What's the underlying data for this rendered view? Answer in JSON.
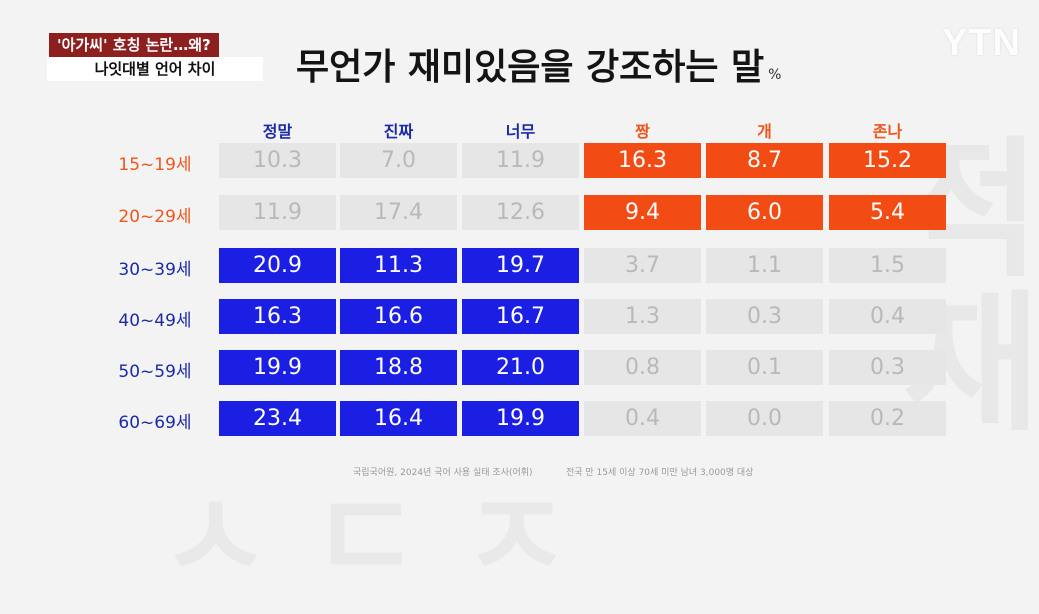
{
  "news": {
    "logo": "YTN",
    "badge_top": "'아가씨' 호칭 논란…왜?",
    "badge_sub": "나잇대별 언어 차이"
  },
  "colors": {
    "blue": "#1b1ee3",
    "orange": "#f24b14",
    "muted": "#e6e6e6",
    "header_blue": "#1b2aa8",
    "header_orange": "#f0561c"
  },
  "chart_data": {
    "type": "table",
    "title": "무언가 재미있음을 강조하는 말",
    "unit": "%",
    "columns": [
      "정말",
      "진짜",
      "너무",
      "짱",
      "개",
      "존나"
    ],
    "column_groups": [
      "blue",
      "blue",
      "blue",
      "orange",
      "orange",
      "orange"
    ],
    "rows": [
      {
        "label": "15~19세",
        "values": [
          "10.3",
          "7.0",
          "11.9",
          "16.3",
          "8.7",
          "15.2"
        ],
        "highlight": "orange"
      },
      {
        "label": "20~29세",
        "values": [
          "11.9",
          "17.4",
          "12.6",
          "9.4",
          "6.0",
          "5.4"
        ],
        "highlight": "orange"
      },
      {
        "label": "30~39세",
        "values": [
          "20.9",
          "11.3",
          "19.7",
          "3.7",
          "1.1",
          "1.5"
        ],
        "highlight": "blue"
      },
      {
        "label": "40~49세",
        "values": [
          "16.3",
          "16.6",
          "16.7",
          "1.3",
          "0.3",
          "0.4"
        ],
        "highlight": "blue"
      },
      {
        "label": "50~59세",
        "values": [
          "19.9",
          "18.8",
          "21.0",
          "0.8",
          "0.1",
          "0.3"
        ],
        "highlight": "blue"
      },
      {
        "label": "60~69세",
        "values": [
          "23.4",
          "16.4",
          "19.9",
          "0.4",
          "0.0",
          "0.2"
        ],
        "highlight": "blue"
      }
    ],
    "source_left": "국립국어원, 2024년 국어 사용 실태 조사(어휘)",
    "source_right": "전국 만 15세 이상 70세 미만 남녀 3,000명 대상"
  }
}
